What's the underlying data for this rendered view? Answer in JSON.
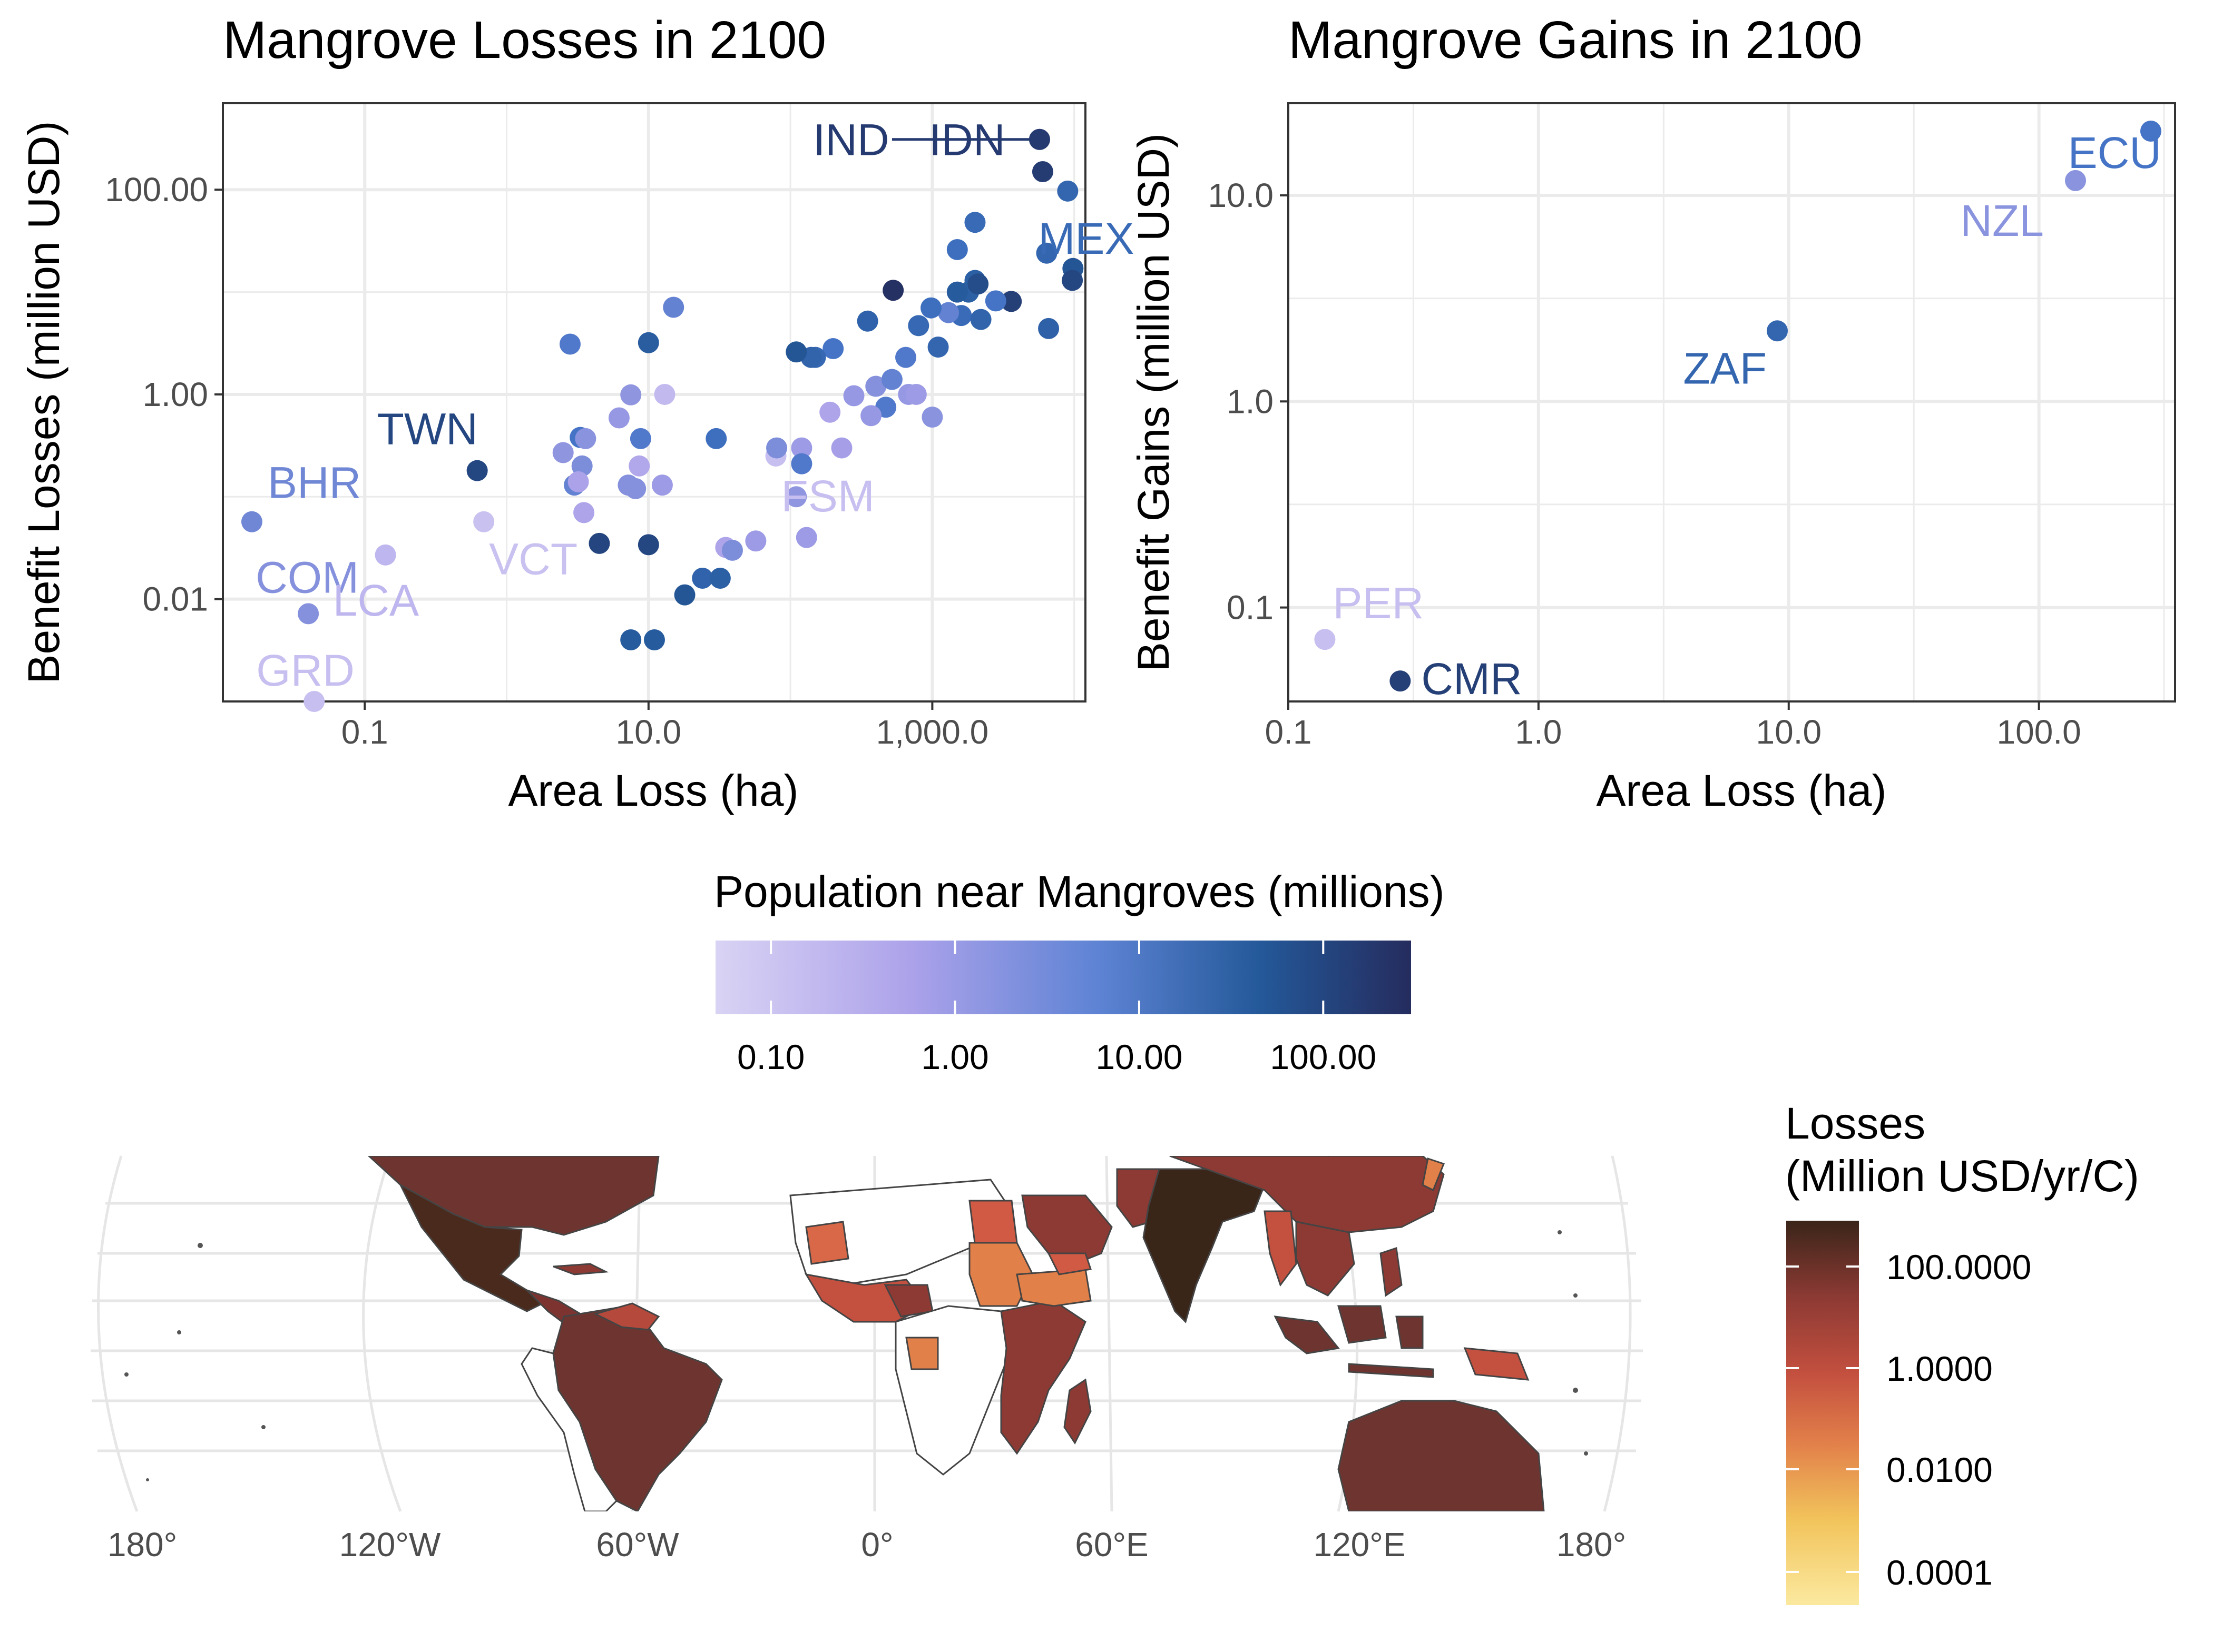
{
  "chart_data": [
    {
      "type": "scatter",
      "title": "Mangrove Losses in 2100",
      "xlabel": "Area Loss (ha)",
      "ylabel": "Benefit Losses (million USD)",
      "x_scale": "log10",
      "y_scale": "log10",
      "xlim": [
        0.01,
        12000
      ],
      "ylim": [
        0.001,
        700
      ],
      "x_ticks": [
        {
          "value": 0.1,
          "label": "0.1"
        },
        {
          "value": 10,
          "label": "10.0"
        },
        {
          "value": 1000,
          "label": "1,000.0"
        }
      ],
      "y_ticks": [
        {
          "value": 0.01,
          "label": "0.01"
        },
        {
          "value": 1,
          "label": "1.00"
        },
        {
          "value": 100,
          "label": "100.00"
        }
      ],
      "grid": true,
      "color_by": "Population near Mangroves (millions)",
      "points": [
        {
          "x": 0.016,
          "y": 0.057,
          "pop": 1.6,
          "label": "BHR"
        },
        {
          "x": 0.04,
          "y": 0.0072,
          "pop": 1.0,
          "label": "COM"
        },
        {
          "x": 0.044,
          "y": 0.001,
          "pop": 0.12,
          "label": "GRD"
        },
        {
          "x": 0.14,
          "y": 0.027,
          "pop": 0.18,
          "label": "LCA"
        },
        {
          "x": 0.62,
          "y": 0.18,
          "pop": 80,
          "label": "TWN"
        },
        {
          "x": 0.69,
          "y": 0.057,
          "pop": 0.11,
          "label": "VCT"
        },
        {
          "x": 79,
          "y": 0.25,
          "pop": 0.12,
          "label": "FSM"
        },
        {
          "x": 5700,
          "y": 310,
          "pop": 150,
          "label": "IND"
        },
        {
          "x": 5700,
          "y": 310,
          "pop": 150,
          "label": "IDN"
        },
        {
          "x": 2000,
          "y": 48,
          "pop": 9,
          "label": "MEX"
        },
        {
          "x": 6000,
          "y": 150,
          "pop": 140
        },
        {
          "x": 9000,
          "y": 97,
          "pop": 12
        },
        {
          "x": 9800,
          "y": 17,
          "pop": 40
        },
        {
          "x": 9700,
          "y": 13,
          "pop": 80
        },
        {
          "x": 6400,
          "y": 24,
          "pop": 12
        },
        {
          "x": 6600,
          "y": 4.4,
          "pop": 18
        },
        {
          "x": 3600,
          "y": 8.1,
          "pop": 120
        },
        {
          "x": 2800,
          "y": 8.2,
          "pop": 4
        },
        {
          "x": 2000,
          "y": 13,
          "pop": 20
        },
        {
          "x": 1500,
          "y": 26,
          "pop": 6
        },
        {
          "x": 1800,
          "y": 10,
          "pop": 20
        },
        {
          "x": 2100,
          "y": 12,
          "pop": 60
        },
        {
          "x": 1500,
          "y": 10,
          "pop": 30
        },
        {
          "x": 1600,
          "y": 5.9,
          "pop": 8
        },
        {
          "x": 2200,
          "y": 5.4,
          "pop": 14
        },
        {
          "x": 1300,
          "y": 6.3,
          "pop": 2
        },
        {
          "x": 980,
          "y": 7,
          "pop": 6
        },
        {
          "x": 800,
          "y": 4.7,
          "pop": 10
        },
        {
          "x": 530,
          "y": 10.4,
          "pop": 250
        },
        {
          "x": 350,
          "y": 5.2,
          "pop": 16
        },
        {
          "x": 1100,
          "y": 2.9,
          "pop": 12
        },
        {
          "x": 200,
          "y": 2.8,
          "pop": 4
        },
        {
          "x": 150,
          "y": 2.3,
          "pop": 10
        },
        {
          "x": 140,
          "y": 2.3,
          "pop": 14
        },
        {
          "x": 110,
          "y": 2.6,
          "pop": 40
        },
        {
          "x": 650,
          "y": 2.3,
          "pop": 3
        },
        {
          "x": 400,
          "y": 1.2,
          "pop": 1.0
        },
        {
          "x": 520,
          "y": 1.4,
          "pop": 2
        },
        {
          "x": 680,
          "y": 1.0,
          "pop": 0.7
        },
        {
          "x": 770,
          "y": 1.0,
          "pop": 0.6
        },
        {
          "x": 470,
          "y": 0.75,
          "pop": 3
        },
        {
          "x": 280,
          "y": 0.97,
          "pop": 0.7
        },
        {
          "x": 370,
          "y": 0.62,
          "pop": 0.7
        },
        {
          "x": 1000,
          "y": 0.6,
          "pop": 0.9
        },
        {
          "x": 190,
          "y": 0.67,
          "pop": 0.4
        },
        {
          "x": 30,
          "y": 0.37,
          "pop": 6
        },
        {
          "x": 230,
          "y": 0.3,
          "pop": 0.5
        },
        {
          "x": 120,
          "y": 0.3,
          "pop": 0.6
        },
        {
          "x": 80,
          "y": 0.3,
          "pop": 1.2
        },
        {
          "x": 120,
          "y": 0.21,
          "pop": 3
        },
        {
          "x": 110,
          "y": 0.1,
          "pop": 0.8
        },
        {
          "x": 130,
          "y": 0.04,
          "pop": 0.6
        },
        {
          "x": 57,
          "y": 0.037,
          "pop": 0.6
        },
        {
          "x": 35,
          "y": 0.032,
          "pop": 0.4
        },
        {
          "x": 39,
          "y": 0.03,
          "pop": 1.2
        },
        {
          "x": 24,
          "y": 0.016,
          "pop": 15
        },
        {
          "x": 18,
          "y": 0.011,
          "pop": 40
        },
        {
          "x": 32,
          "y": 0.016,
          "pop": 20
        },
        {
          "x": 7.5,
          "y": 0.004,
          "pop": 30
        },
        {
          "x": 4.5,
          "y": 0.035,
          "pop": 90
        },
        {
          "x": 10,
          "y": 0.034,
          "pop": 80
        },
        {
          "x": 11,
          "y": 0.004,
          "pop": 30
        },
        {
          "x": 2.8,
          "y": 3.1,
          "pop": 3
        },
        {
          "x": 10,
          "y": 3.2,
          "pop": 25
        },
        {
          "x": 15,
          "y": 7.1,
          "pop": 2
        },
        {
          "x": 6.2,
          "y": 0.59,
          "pop": 0.7
        },
        {
          "x": 7.5,
          "y": 0.99,
          "pop": 0.8
        },
        {
          "x": 13,
          "y": 1.0,
          "pop": 0.15
        },
        {
          "x": 3,
          "y": 0.13,
          "pop": 2
        },
        {
          "x": 3.4,
          "y": 0.2,
          "pop": 1.2
        },
        {
          "x": 3.3,
          "y": 0.38,
          "pop": 4
        },
        {
          "x": 3.6,
          "y": 0.37,
          "pop": 0.9
        },
        {
          "x": 2.5,
          "y": 0.27,
          "pop": 0.8
        },
        {
          "x": 8.8,
          "y": 0.37,
          "pop": 3
        },
        {
          "x": 7.2,
          "y": 0.13,
          "pop": 1.0
        },
        {
          "x": 8.1,
          "y": 0.12,
          "pop": 1.0
        },
        {
          "x": 8.6,
          "y": 0.2,
          "pop": 0.35
        },
        {
          "x": 3.2,
          "y": 0.14,
          "pop": 0.45
        },
        {
          "x": 3.5,
          "y": 0.07,
          "pop": 0.4
        },
        {
          "x": 12.5,
          "y": 0.13,
          "pop": 0.6
        }
      ]
    },
    {
      "type": "scatter",
      "title": "Mangrove Gains in 2100",
      "xlabel": "Area Loss (ha)",
      "ylabel": "Benefit Gains (million USD)",
      "x_scale": "log10",
      "y_scale": "log10",
      "xlim": [
        0.1,
        350
      ],
      "ylim": [
        0.035,
        28
      ],
      "x_ticks": [
        {
          "value": 0.1,
          "label": "0.1"
        },
        {
          "value": 1,
          "label": "1.0"
        },
        {
          "value": 10,
          "label": "10.0"
        },
        {
          "value": 100,
          "label": "100.0"
        }
      ],
      "y_ticks": [
        {
          "value": 0.1,
          "label": "0.1"
        },
        {
          "value": 1,
          "label": "1.0"
        },
        {
          "value": 10,
          "label": "10.0"
        }
      ],
      "grid": true,
      "color_by": "Population near Mangroves (millions)",
      "points": [
        {
          "x": 0.14,
          "y": 0.07,
          "pop": 0.12,
          "label": "PER"
        },
        {
          "x": 0.28,
          "y": 0.044,
          "pop": 120,
          "label": "CMR"
        },
        {
          "x": 9,
          "y": 2.2,
          "pop": 12,
          "label": "ZAF"
        },
        {
          "x": 140,
          "y": 11.8,
          "pop": 0.9,
          "label": "NZL"
        },
        {
          "x": 280,
          "y": 20.5,
          "pop": 4,
          "label": "ECU"
        }
      ]
    },
    {
      "type": "map",
      "projection": "equal-earth style world map",
      "x_ticks": [
        "180°",
        "120°W",
        "60°W",
        "0°",
        "60°E",
        "120°E",
        "180°"
      ],
      "value_title": "Losses\n(Million USD/yr/C)",
      "color_scale": [
        {
          "value": 100,
          "label": "100.0000"
        },
        {
          "value": 1,
          "label": "1.0000"
        },
        {
          "value": 0.01,
          "label": "0.0100"
        },
        {
          "value": 0.0001,
          "label": "0.0001"
        }
      ],
      "countries": [
        {
          "code": "IND",
          "level": 400
        },
        {
          "code": "MEX",
          "level": 100
        },
        {
          "code": "USA",
          "level": 30
        },
        {
          "code": "BRA",
          "level": 20
        },
        {
          "code": "COL",
          "level": 8
        },
        {
          "code": "VEN",
          "level": 5
        },
        {
          "code": "IDN",
          "level": 40
        },
        {
          "code": "AUS",
          "level": 20
        },
        {
          "code": "CHN",
          "level": 12
        },
        {
          "code": "SAU",
          "level": 6
        },
        {
          "code": "NGA",
          "level": 6
        },
        {
          "code": "MOZ",
          "level": 8
        },
        {
          "code": "TZA",
          "level": 6
        },
        {
          "code": "MDG",
          "level": 5
        },
        {
          "code": "EGY",
          "level": 1
        },
        {
          "code": "SDN",
          "level": 0.05
        },
        {
          "code": "MRT",
          "level": 0.3
        },
        {
          "code": "PAK",
          "level": 8
        },
        {
          "code": "MMR",
          "level": 10
        },
        {
          "code": "VNM",
          "level": 6
        },
        {
          "code": "JPN",
          "level": 0.2
        },
        {
          "code": "PNG",
          "level": 3
        }
      ]
    }
  ],
  "population_legend": {
    "title": "Population near Mangroves (millions)",
    "scale": "log10",
    "range": [
      0.05,
      300
    ],
    "ticks": [
      {
        "value": 0.1,
        "label": "0.10"
      },
      {
        "value": 1,
        "label": "1.00"
      },
      {
        "value": 10,
        "label": "10.00"
      },
      {
        "value": 100,
        "label": "100.00"
      }
    ],
    "colors": [
      "#d9d3f4",
      "#aca2ea",
      "#4574c7",
      "#24599a",
      "#252c5e"
    ]
  },
  "losses_palette": [
    "#fbe9a0",
    "#f2c45c",
    "#e2804a",
    "#c4503f",
    "#8d3a34",
    "#3a2519"
  ]
}
